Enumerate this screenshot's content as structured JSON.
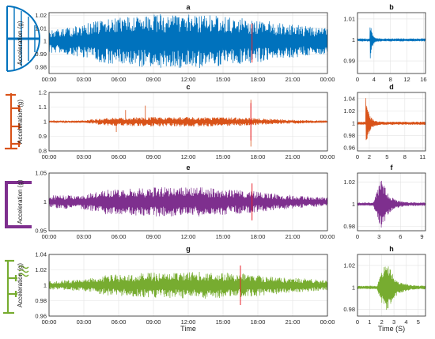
{
  "figure": {
    "time_axis_label": "Time",
    "time_s_axis_label": "Time (S)"
  },
  "chart_data": [
    {
      "id": "a",
      "type": "line",
      "title": "a",
      "ylabel": "Acceleration (g)",
      "xlabel": "",
      "x_ticks": [
        "00:00",
        "03:00",
        "06:00",
        "09:00",
        "12:00",
        "15:00",
        "18:00",
        "21:00",
        "00:00"
      ],
      "xlim_hours": [
        0,
        24
      ],
      "y_ticks": [
        0.98,
        0.99,
        1,
        1.01,
        1.02
      ],
      "ylim": [
        0.975,
        1.022
      ],
      "baseline": 1.0,
      "amplitude_profile": [
        [
          0,
          0.008
        ],
        [
          2,
          0.01
        ],
        [
          5,
          0.016
        ],
        [
          9,
          0.019
        ],
        [
          13,
          0.019
        ],
        [
          17,
          0.016
        ],
        [
          21,
          0.012
        ],
        [
          24,
          0.009
        ]
      ],
      "event_marker_hours": 17.5,
      "color": "#0072BD",
      "marker_color": "#e8202a",
      "structure_icon": "arch-bridge-icon",
      "grid": true
    },
    {
      "id": "b",
      "type": "line",
      "title": "b",
      "ylabel": "",
      "xlabel": "",
      "x_ticks": [
        0,
        4,
        8,
        12,
        16
      ],
      "xlim": [
        0,
        16.5
      ],
      "y_ticks": [
        0.99,
        1,
        1.01
      ],
      "ylim": [
        0.984,
        1.013
      ],
      "baseline": 1.0,
      "peak_amplitude": 0.012,
      "onset": 3.0,
      "decay": 0.45,
      "color": "#0072BD",
      "grid": true
    },
    {
      "id": "c",
      "type": "line",
      "title": "c",
      "ylabel": "Acceleration (g)",
      "xlabel": "",
      "x_ticks": [
        "00:00",
        "03:00",
        "06:00",
        "09:00",
        "12:00",
        "15:00",
        "18:00",
        "21:00",
        "00:00"
      ],
      "xlim_hours": [
        0,
        24
      ],
      "y_ticks": [
        0.8,
        0.9,
        1,
        1.1,
        1.2
      ],
      "ylim": [
        0.8,
        1.2
      ],
      "baseline": 1.0,
      "amplitude_profile": [
        [
          0,
          0.005
        ],
        [
          3,
          0.008
        ],
        [
          5,
          0.025
        ],
        [
          9,
          0.03
        ],
        [
          13,
          0.03
        ],
        [
          17,
          0.025
        ],
        [
          20,
          0.015
        ],
        [
          24,
          0.006
        ]
      ],
      "spikes": [
        [
          6.6,
          0.08
        ],
        [
          8.3,
          0.11
        ],
        [
          5.8,
          -0.07
        ],
        [
          17.4,
          0.15
        ],
        [
          17.4,
          -0.17
        ]
      ],
      "event_marker_hours": 17.4,
      "color": "#D95319",
      "marker_color": "#e8202a",
      "structure_icon": "tower-icon",
      "grid": true
    },
    {
      "id": "d",
      "type": "line",
      "title": "d",
      "ylabel": "",
      "xlabel": "",
      "x_ticks": [
        0,
        2,
        5,
        8,
        11
      ],
      "xlim": [
        0,
        11.5
      ],
      "y_ticks": [
        0.96,
        0.98,
        1,
        1.02,
        1.04
      ],
      "ylim": [
        0.955,
        1.05
      ],
      "baseline": 1.0,
      "peak_amplitude": 0.042,
      "onset": 1.4,
      "decay": 0.55,
      "color": "#D95319",
      "grid": true
    },
    {
      "id": "e",
      "type": "line",
      "title": "e",
      "ylabel": "Acceleration (g)",
      "xlabel": "",
      "x_ticks": [
        "00:00",
        "03:00",
        "06:00",
        "09:00",
        "12:00",
        "15:00",
        "18:00",
        "21:00",
        "00:00"
      ],
      "xlim_hours": [
        0,
        24
      ],
      "y_ticks": [
        0.95,
        1,
        1.05
      ],
      "ylim": [
        0.95,
        1.05
      ],
      "baseline": 1.0,
      "amplitude_profile": [
        [
          0,
          0.01
        ],
        [
          3,
          0.012
        ],
        [
          5,
          0.02
        ],
        [
          9,
          0.023
        ],
        [
          13,
          0.023
        ],
        [
          17,
          0.018
        ],
        [
          20,
          0.012
        ],
        [
          24,
          0.007
        ]
      ],
      "event_marker_hours": 17.5,
      "color": "#7E2F8E",
      "marker_color": "#e8202a",
      "structure_icon": "frame-icon",
      "grid": true
    },
    {
      "id": "f",
      "type": "line",
      "title": "f",
      "ylabel": "",
      "xlabel": "",
      "x_ticks": [
        0,
        3,
        6,
        9
      ],
      "xlim": [
        0,
        9.5
      ],
      "y_ticks": [
        0.98,
        1,
        1.02
      ],
      "ylim": [
        0.976,
        1.028
      ],
      "baseline": 1.0,
      "peak_amplitude": 0.024,
      "onset": 2.2,
      "envelope_peak": 3.4,
      "decay": 0.9,
      "color": "#7E2F8E",
      "grid": true
    },
    {
      "id": "g",
      "type": "line",
      "title": "g",
      "ylabel": "Acceleration (g)",
      "xlabel": "Time",
      "x_ticks": [
        "00:00",
        "03:00",
        "06:00",
        "09:00",
        "12:00",
        "15:00",
        "18:00",
        "21:00",
        "00:00"
      ],
      "xlim_hours": [
        0,
        24
      ],
      "y_ticks": [
        0.96,
        0.98,
        1,
        1.02,
        1.04
      ],
      "ylim": [
        0.96,
        1.04
      ],
      "baseline": 1.0,
      "amplitude_profile": [
        [
          0,
          0.005
        ],
        [
          3,
          0.007
        ],
        [
          5,
          0.012
        ],
        [
          9,
          0.015
        ],
        [
          13,
          0.016
        ],
        [
          17,
          0.014
        ],
        [
          20,
          0.01
        ],
        [
          24,
          0.006
        ]
      ],
      "event_marker_hours": 16.5,
      "color": "#77AC30",
      "marker_color": "#e8202a",
      "structure_icon": "damper-icon",
      "grid": true
    },
    {
      "id": "h",
      "type": "line",
      "title": "h",
      "ylabel": "",
      "xlabel": "Time (S)",
      "x_ticks": [
        0,
        1,
        2,
        3,
        4,
        5
      ],
      "xlim": [
        0,
        5.6
      ],
      "y_ticks": [
        0.98,
        1,
        1.02
      ],
      "ylim": [
        0.974,
        1.03
      ],
      "baseline": 1.0,
      "peak_amplitude": 0.026,
      "onset": 1.6,
      "envelope_peak": 2.4,
      "decay": 0.6,
      "color": "#77AC30",
      "grid": true
    }
  ]
}
